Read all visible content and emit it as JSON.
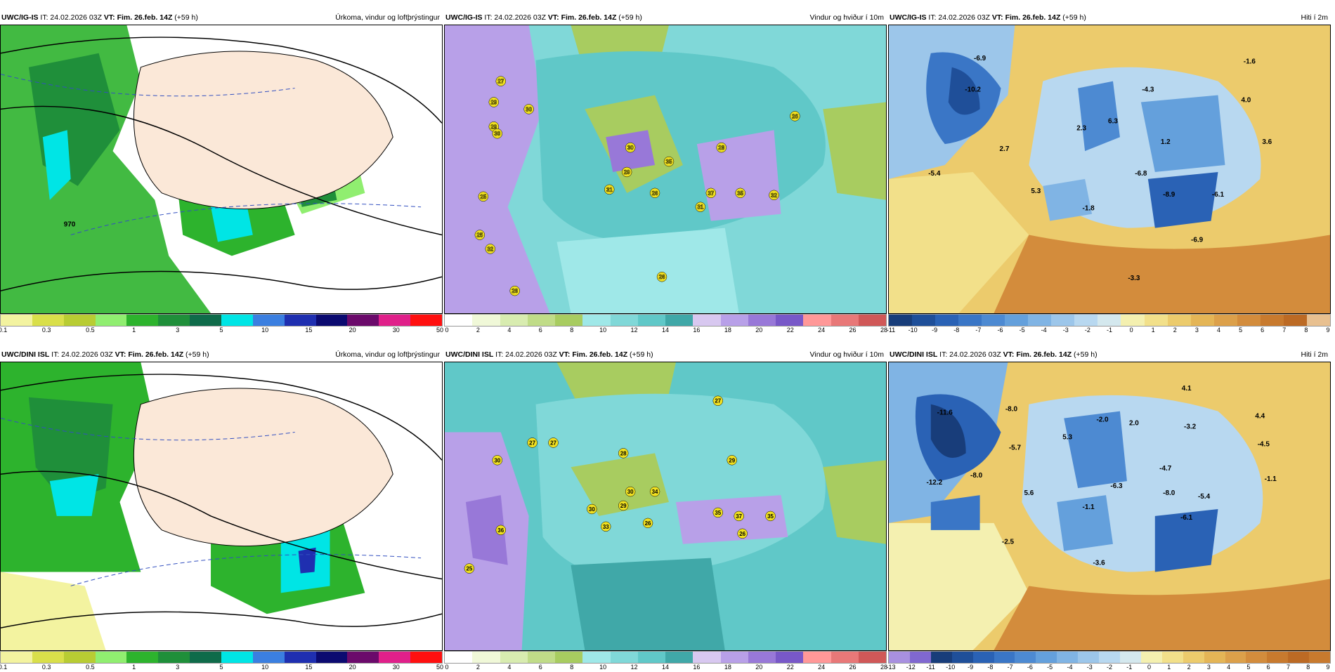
{
  "panels": [
    {
      "model": "UWC/IG-IS",
      "it": "24.02.2026 03Z",
      "vt": "Fim. 26.feb. 14Z",
      "lead": "(+59 h)",
      "title": "Úrkoma, vindur og loftþrýstingur",
      "kind": "precip",
      "colors": [
        "#f3f3a0",
        "#d9df4a",
        "#b8cc33",
        "#90ee70",
        "#2db32d",
        "#1f8f3a",
        "#0f6b4a",
        "#00e5e5",
        "#3b7fe0",
        "#1f2fb0",
        "#0b0a70",
        "#6b0a6b",
        "#e0208a",
        "#ff1010"
      ],
      "tick_labels": [
        "0.1",
        "0.3",
        "0.5",
        "1",
        "3",
        "5",
        "10",
        "15",
        "20",
        "30",
        "50"
      ],
      "numbers": [
        "970"
      ]
    },
    {
      "model": "UWC/IG-IS",
      "it": "24.02.2026 03Z",
      "vt": "Fim. 26.feb. 14Z",
      "lead": "(+59 h)",
      "title": "Vindur og hviður í 10m",
      "kind": "wind",
      "colors": [
        "#ffffff",
        "#f0f8d8",
        "#d8ecb0",
        "#c0dc88",
        "#a8cc60",
        "#9fe8e8",
        "#80d8d8",
        "#60c8c8",
        "#40a8a8",
        "#d8c8f0",
        "#b8a0e8",
        "#9878d8",
        "#7858c8",
        "#ff9898",
        "#e87878",
        "#d05858"
      ],
      "tick_labels": [
        "0",
        "2",
        "4",
        "6",
        "8",
        "10",
        "12",
        "14",
        "16",
        "18",
        "20",
        "22",
        "24",
        "26",
        "28"
      ],
      "numbers": [
        "27",
        "29",
        "29",
        "30",
        "30",
        "30",
        "29",
        "35",
        "28",
        "31",
        "26",
        "37",
        "35",
        "32",
        "25",
        "31",
        "25",
        "32",
        "26",
        "26",
        "26"
      ]
    },
    {
      "model": "UWC/IG-IS",
      "it": "24.02.2026 03Z",
      "vt": "Fim. 26.feb. 14Z",
      "lead": "(+59 h)",
      "title": "Hiti í 2m",
      "kind": "temp",
      "colors": [
        "#183d7a",
        "#1f4f99",
        "#2a62b5",
        "#3a76c6",
        "#4d8ad2",
        "#64a0dc",
        "#80b4e4",
        "#9cc6ea",
        "#b8d8f0",
        "#d4e8ee",
        "#f4f0b0",
        "#f2e08a",
        "#eccb6c",
        "#e4b556",
        "#dca04a",
        "#d38c3c",
        "#c87a2e",
        "#bc6a24",
        "#e8c090"
      ],
      "tick_labels": [
        "-11",
        "-10",
        "-9",
        "-8",
        "-7",
        "-6",
        "-5",
        "-4",
        "-3",
        "-2",
        "-1",
        "0",
        "1",
        "2",
        "3",
        "4",
        "5",
        "6",
        "7",
        "8",
        "9"
      ],
      "numbers": [
        "-6.9",
        "-10.2",
        "-4.3",
        "-1.6",
        "6.3",
        "4.0",
        "2.3",
        "1.2",
        "3.6",
        "2.7",
        "-5.4",
        "5.3",
        "-6.8",
        "-8.9",
        "-6.1",
        "-1.8",
        "-6.9",
        "-3.3"
      ]
    },
    {
      "model": "UWC/DINI ISL",
      "it": "24.02.2026 03Z",
      "vt": "Fim. 26.feb. 14Z",
      "lead": "(+59 h)",
      "title": "Úrkoma, vindur og loftþrýstingur",
      "kind": "precip",
      "colors": [
        "#f3f3a0",
        "#d9df4a",
        "#b8cc33",
        "#90ee70",
        "#2db32d",
        "#1f8f3a",
        "#0f6b4a",
        "#00e5e5",
        "#3b7fe0",
        "#1f2fb0",
        "#0b0a70",
        "#6b0a6b",
        "#e0208a",
        "#ff1010"
      ],
      "tick_labels": [
        "0.1",
        "0.3",
        "0.5",
        "1",
        "3",
        "5",
        "10",
        "15",
        "20",
        "30",
        "50"
      ],
      "numbers": []
    },
    {
      "model": "UWC/DINI ISL",
      "it": "24.02.2026 03Z",
      "vt": "Fim. 26.feb. 14Z",
      "lead": "(+59 h)",
      "title": "Vindur og hviður í 10m",
      "kind": "wind",
      "colors": [
        "#ffffff",
        "#f0f8d8",
        "#d8ecb0",
        "#c0dc88",
        "#a8cc60",
        "#9fe8e8",
        "#80d8d8",
        "#60c8c8",
        "#40a8a8",
        "#d8c8f0",
        "#b8a0e8",
        "#9878d8",
        "#7858c8",
        "#ff9898",
        "#e87878",
        "#d05858"
      ],
      "tick_labels": [
        "0",
        "2",
        "4",
        "6",
        "8",
        "10",
        "12",
        "14",
        "16",
        "18",
        "20",
        "22",
        "24",
        "26",
        "28"
      ],
      "numbers": [
        "27",
        "27",
        "27",
        "28",
        "30",
        "30",
        "29",
        "29",
        "36",
        "30",
        "34",
        "33",
        "26",
        "35",
        "37",
        "35",
        "26",
        "25"
      ]
    },
    {
      "model": "UWC/DINI ISL",
      "it": "24.02.2026 03Z",
      "vt": "Fim. 26.feb. 14Z",
      "lead": "(+59 h)",
      "title": "Hiti í 2m",
      "kind": "temp",
      "colors": [
        "#a890e0",
        "#8068d0",
        "#183d7a",
        "#1f4f99",
        "#2a62b5",
        "#3a76c6",
        "#4d8ad2",
        "#64a0dc",
        "#80b4e4",
        "#9cc6ea",
        "#b8d8f0",
        "#d4e8ee",
        "#f4f0b0",
        "#f2e08a",
        "#eccb6c",
        "#e4b556",
        "#dca04a",
        "#d38c3c",
        "#c87a2e",
        "#bc6a24",
        "#c87a2e"
      ],
      "tick_labels": [
        "-13",
        "-12",
        "-11",
        "-10",
        "-9",
        "-8",
        "-7",
        "-6",
        "-5",
        "-4",
        "-3",
        "-2",
        "-1",
        "0",
        "1",
        "2",
        "3",
        "4",
        "5",
        "6",
        "7",
        "8",
        "9"
      ],
      "numbers": [
        "-11.6",
        "-8.0",
        "4.1",
        "-2.0",
        "2.0",
        "-3.2",
        "4.4",
        "5.3",
        "-5.7",
        "-4.5",
        "-4.7",
        "-12.2",
        "-8.0",
        "-6.3",
        "-1.1",
        "5.6",
        "-8.0",
        "-5.4",
        "-1.1",
        "-6.1",
        "-2.5",
        "-3.6"
      ]
    }
  ]
}
